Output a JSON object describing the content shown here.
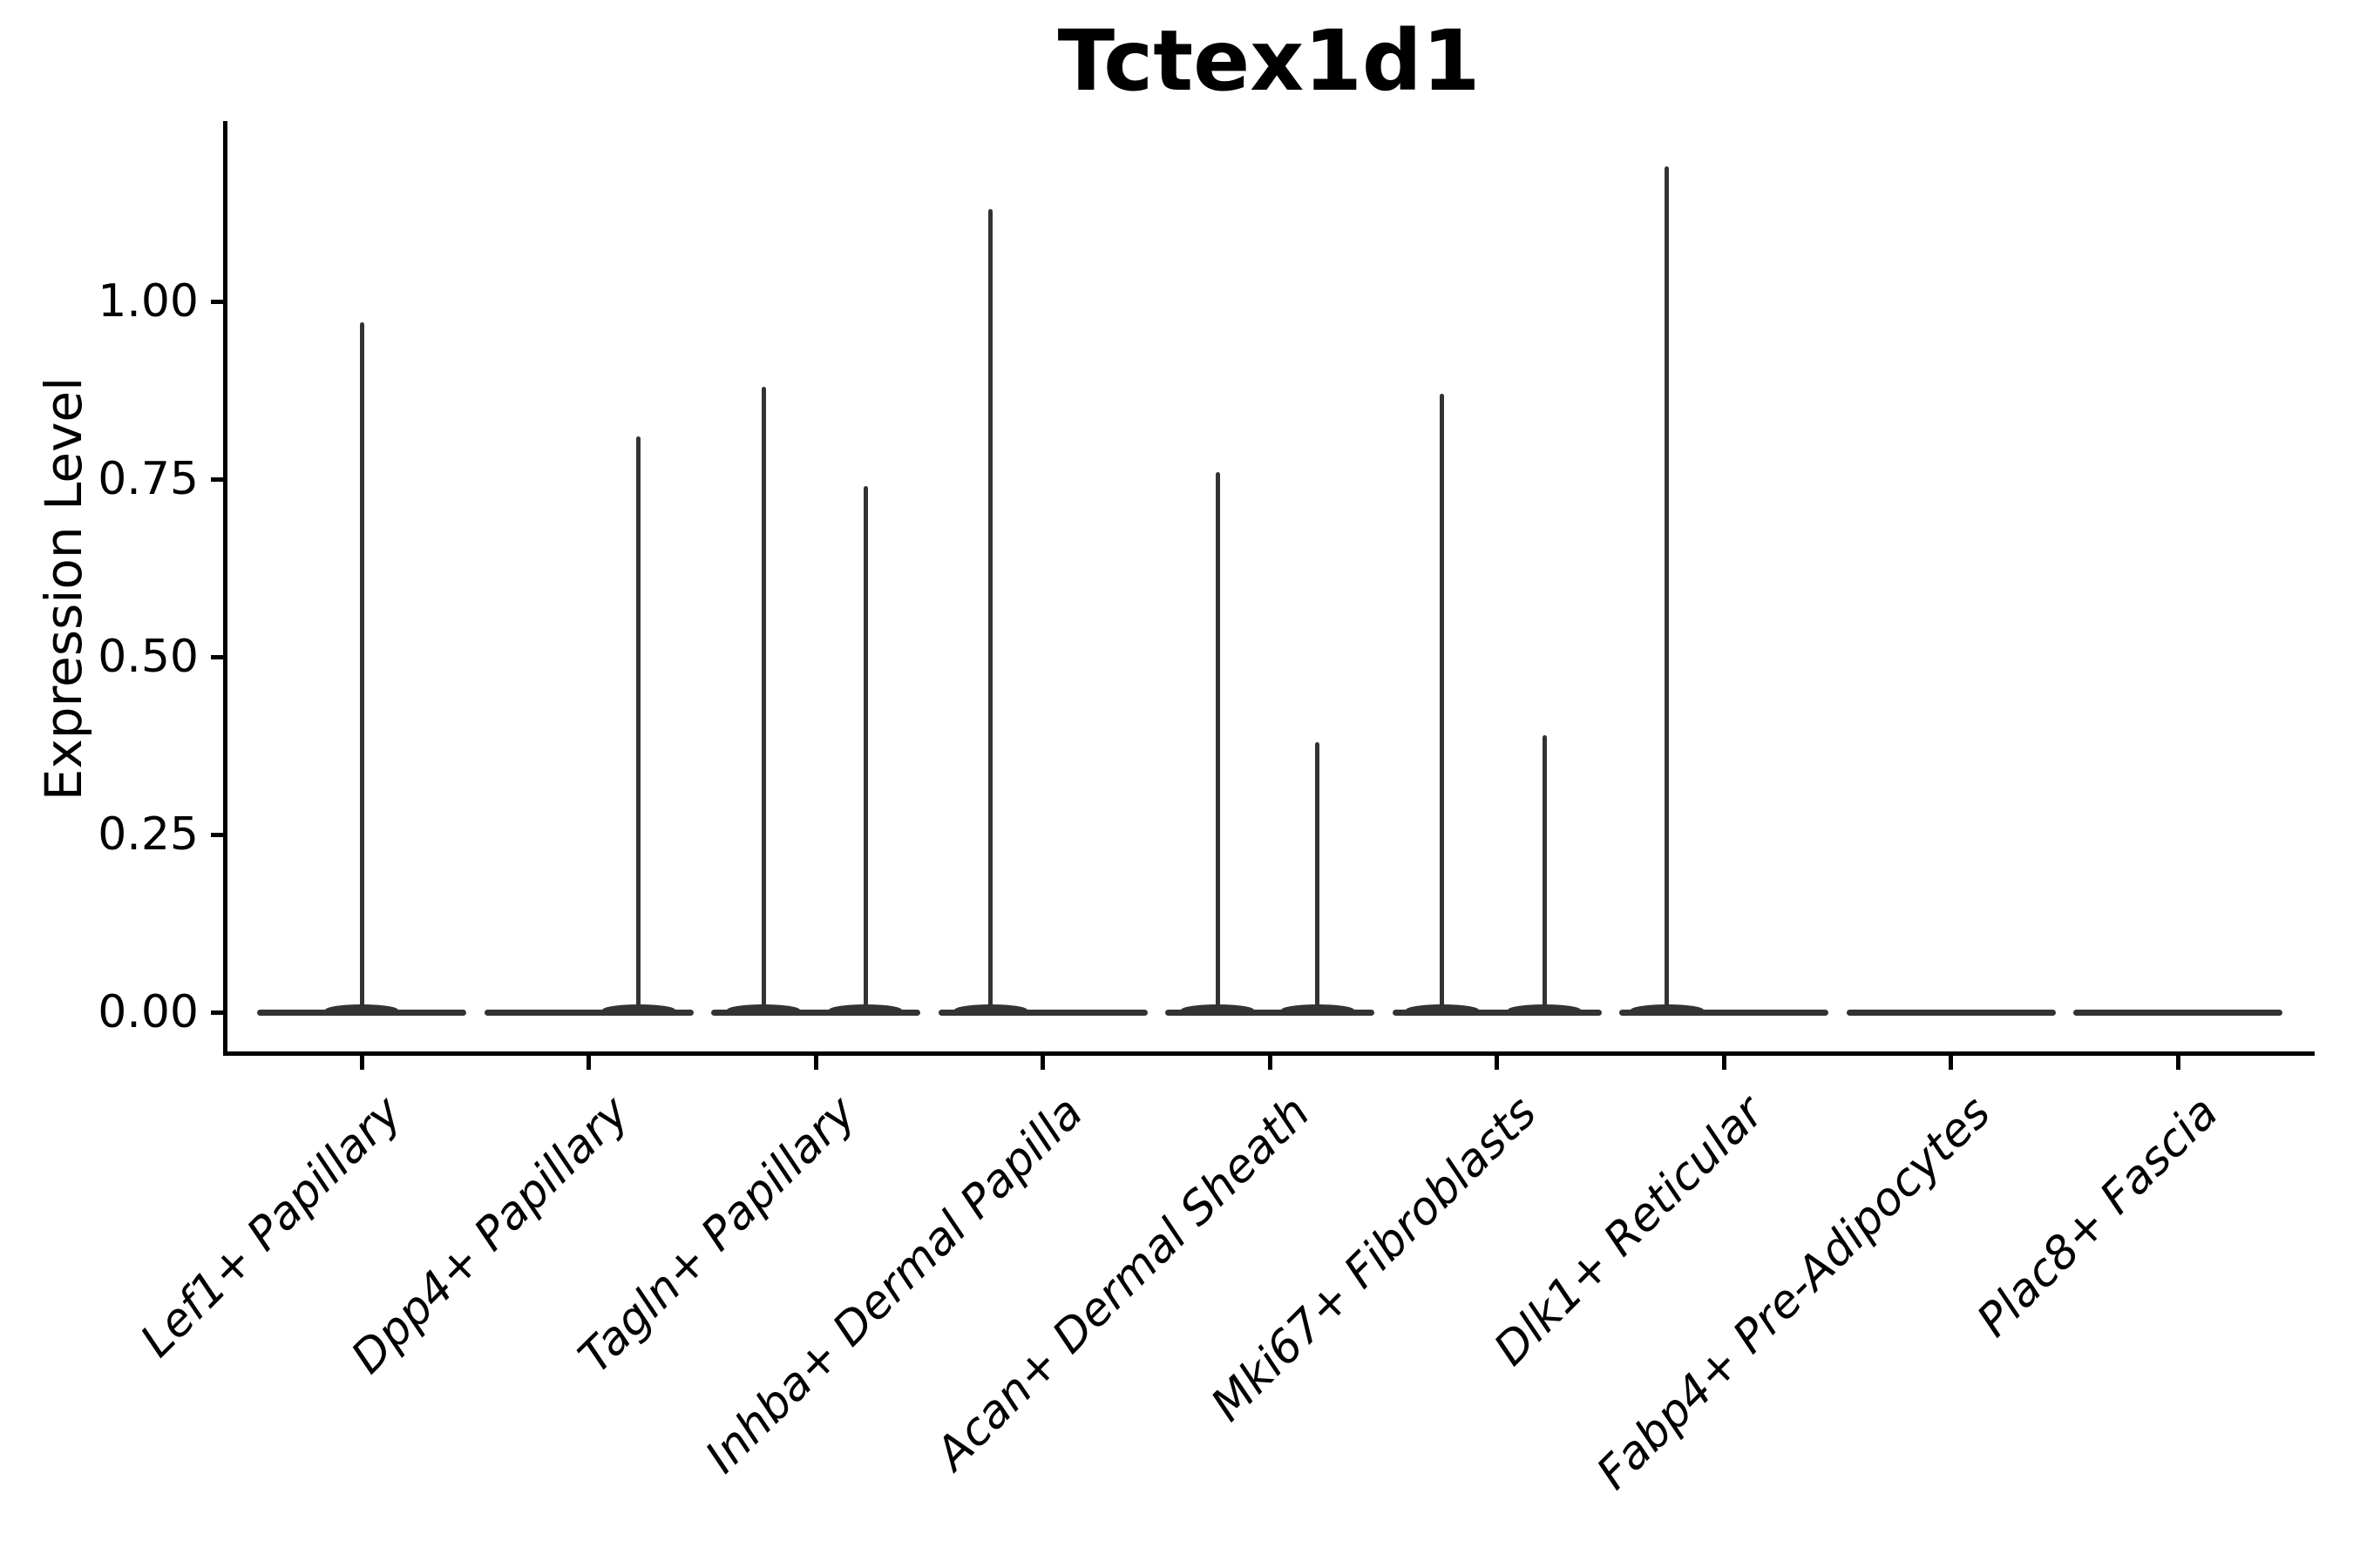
{
  "chart_data": {
    "type": "violin",
    "title": "Tctex1d1",
    "xlabel": "",
    "ylabel": "Expression Level",
    "y_ticks": [
      0.0,
      0.25,
      0.5,
      0.75,
      1.0
    ],
    "y_tick_labels": [
      "0.00",
      "0.25",
      "0.50",
      "0.75",
      "1.00"
    ],
    "ylim": [
      -0.06,
      1.25
    ],
    "grid": false,
    "legend": "none",
    "violin_color": "#333333",
    "axis_color": "#000000",
    "background_color": "#ffffff",
    "categories": [
      "Lef1+ Papillary",
      "Dpp4+ Papillary",
      "Tagln+ Papillary",
      "Inhba+ Dermal Papilla",
      "Acan+ Dermal Sheath",
      "Mki67+ Fibroblasts",
      "Dlk1+ Reticular",
      "Fabp4+ Pre-Adipocytes",
      "Plac8+ Fascia"
    ],
    "violins": [
      {
        "category": "Lef1+ Papillary",
        "baseline_value": 0.0,
        "spikes": [
          {
            "x_offset_frac": 0.0,
            "max_expression": 0.97
          }
        ]
      },
      {
        "category": "Dpp4+ Papillary",
        "baseline_value": 0.0,
        "spikes": [
          {
            "x_offset_frac": 0.22,
            "max_expression": 0.81
          }
        ]
      },
      {
        "category": "Tagln+ Papillary",
        "baseline_value": 0.0,
        "spikes": [
          {
            "x_offset_frac": -0.23,
            "max_expression": 0.88
          },
          {
            "x_offset_frac": 0.22,
            "max_expression": 0.74
          }
        ]
      },
      {
        "category": "Inhba+ Dermal Papilla",
        "baseline_value": 0.0,
        "spikes": [
          {
            "x_offset_frac": -0.23,
            "max_expression": 1.13
          }
        ]
      },
      {
        "category": "Acan+ Dermal Sheath",
        "baseline_value": 0.0,
        "spikes": [
          {
            "x_offset_frac": -0.23,
            "max_expression": 0.76
          },
          {
            "x_offset_frac": 0.21,
            "max_expression": 0.38
          }
        ]
      },
      {
        "category": "Mki67+ Fibroblasts",
        "baseline_value": 0.0,
        "spikes": [
          {
            "x_offset_frac": -0.24,
            "max_expression": 0.87
          },
          {
            "x_offset_frac": 0.21,
            "max_expression": 0.39
          }
        ]
      },
      {
        "category": "Dlk1+ Reticular",
        "baseline_value": 0.0,
        "spikes": [
          {
            "x_offset_frac": -0.25,
            "max_expression": 1.19
          }
        ]
      },
      {
        "category": "Fabp4+ Pre-Adipocytes",
        "baseline_value": 0.0,
        "spikes": []
      },
      {
        "category": "Plac8+ Fascia",
        "baseline_value": 0.0,
        "spikes": []
      }
    ]
  }
}
